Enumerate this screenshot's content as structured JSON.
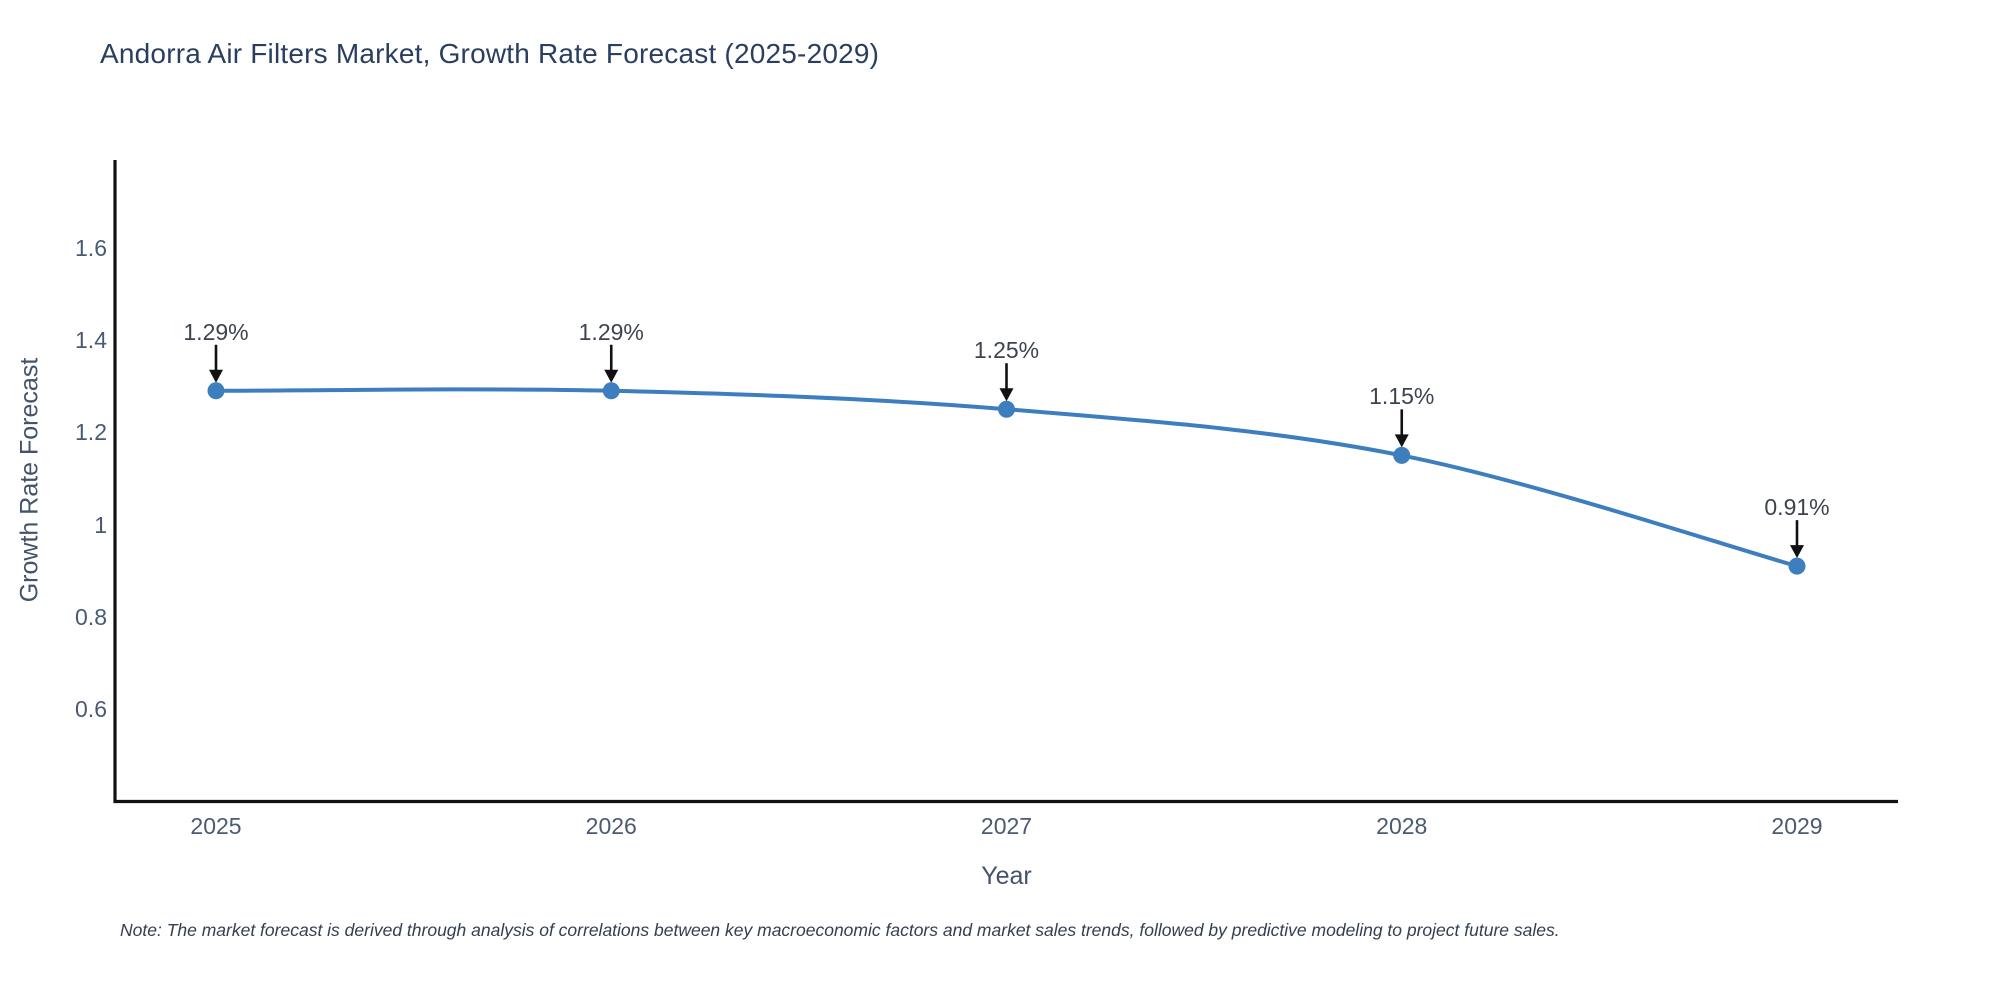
{
  "title": "Andorra Air Filters Market, Growth Rate Forecast (2025-2029)",
  "note": "Note: The market forecast is derived through analysis of correlations between key macroeconomic factors and market sales trends, followed by predictive modeling to project future sales.",
  "chart_data": {
    "type": "line",
    "title": "Andorra Air Filters Market, Growth Rate Forecast (2025-2029)",
    "xlabel": "Year",
    "ylabel": "Growth Rate Forecast",
    "x": [
      2025,
      2026,
      2027,
      2028,
      2029
    ],
    "values": [
      1.29,
      1.29,
      1.25,
      1.15,
      0.91
    ],
    "point_labels": [
      "1.29%",
      "1.29%",
      "1.25%",
      "1.15%",
      "0.91%"
    ],
    "x_tick_labels": [
      "2025",
      "2026",
      "2027",
      "2028",
      "2029"
    ],
    "y_tick_values": [
      1.6,
      1.4,
      1.2,
      1,
      0.8,
      0.6
    ],
    "y_tick_labels": [
      "1.6",
      "1.4",
      "1.2",
      "1",
      "0.8",
      "0.6"
    ],
    "ylim": [
      0.4,
      1.79
    ],
    "line_shape": "spline",
    "grid": false,
    "legend": "none",
    "annotations_have_arrows": true,
    "colors": {
      "line": "#3d7ebf",
      "marker": "#3d7ebf",
      "arrow": "#111111",
      "axis": "#111111",
      "title_text": "#2a3f5f",
      "tick_text": "#4a5a73",
      "annotation_text": "#3d4450",
      "note_text": "#333f50",
      "background": "#ffffff"
    }
  }
}
